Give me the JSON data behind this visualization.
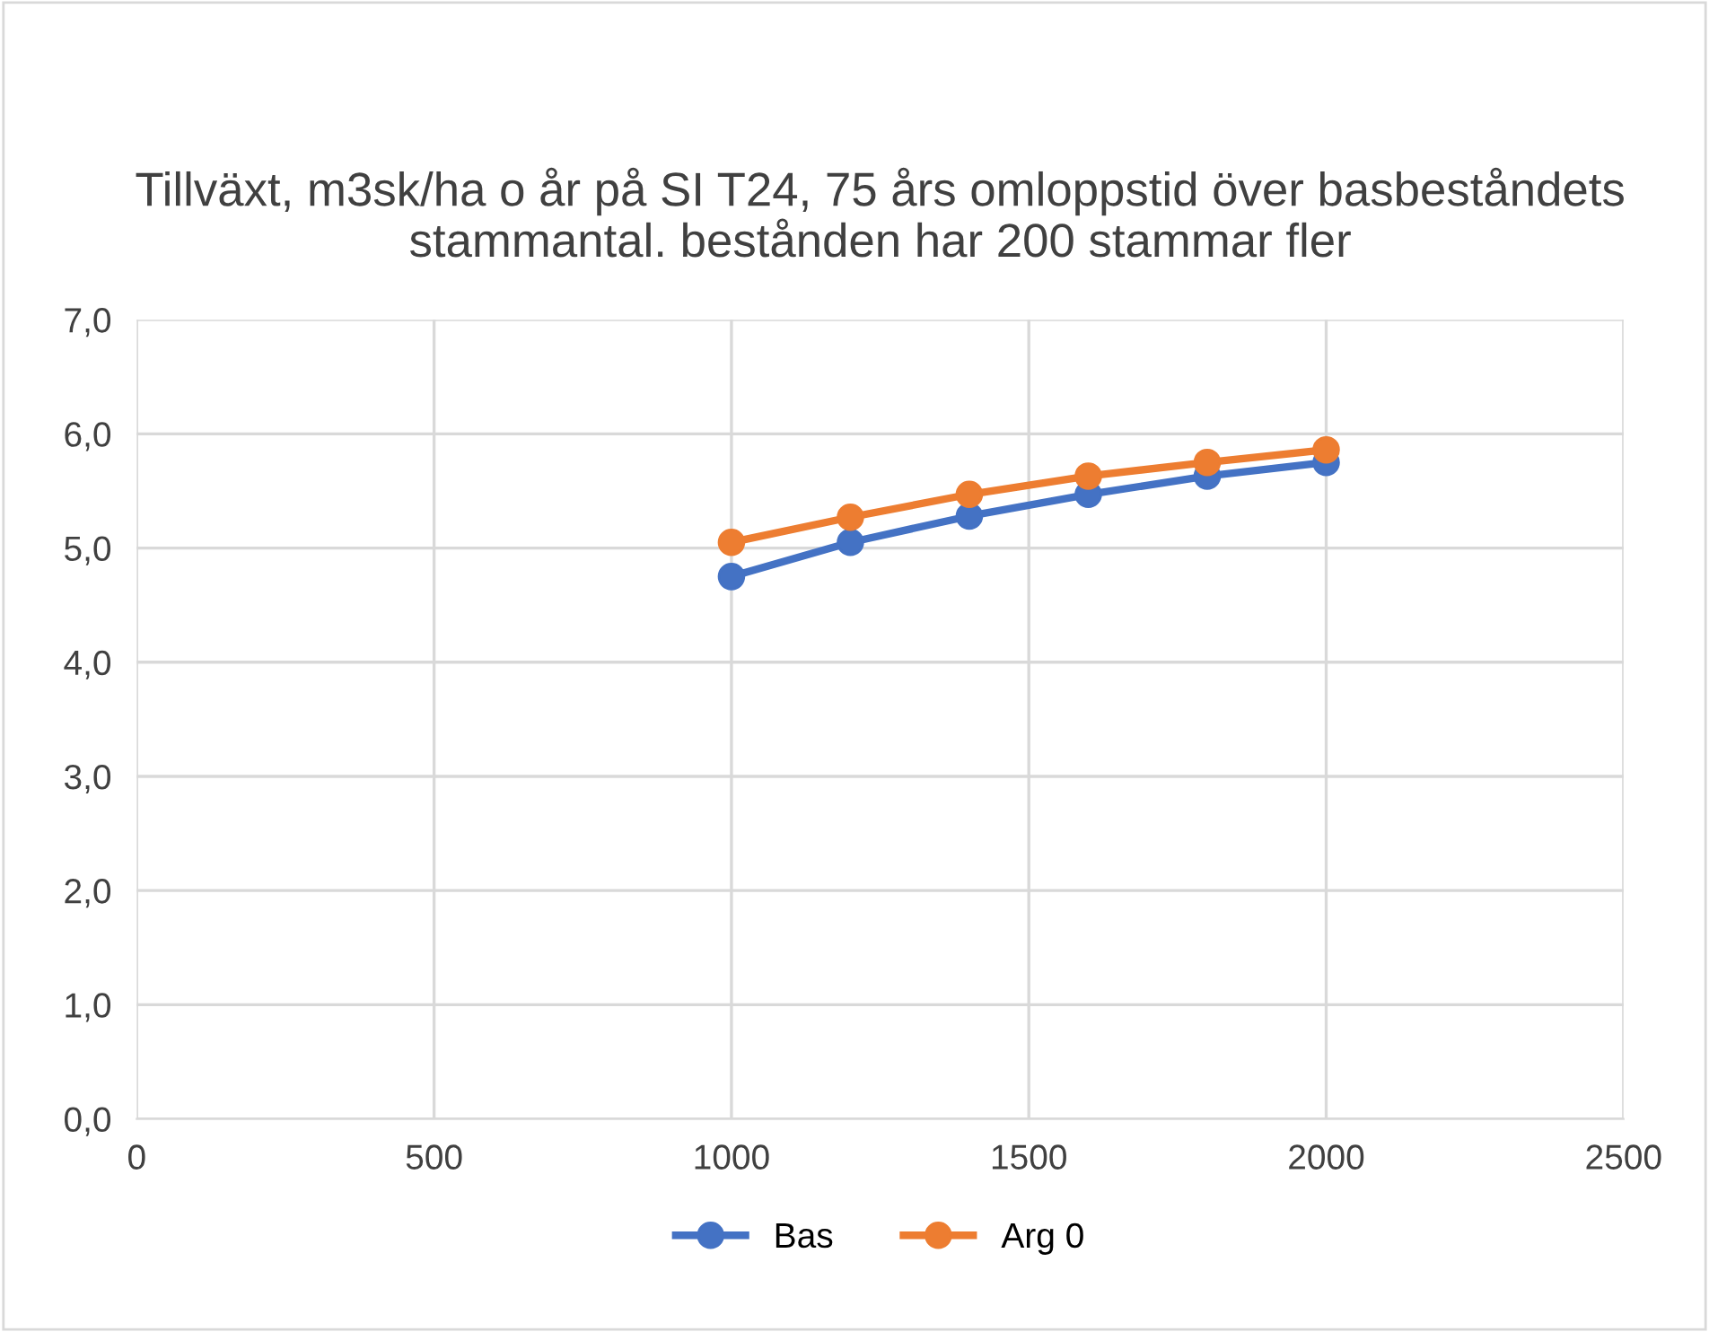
{
  "chart_data": {
    "type": "line",
    "title": "Tillväxt, m3sk/ha o år på SI T24, 75 års omloppstid över basbeståndets stammantal. bestånden har 200 stammar fler",
    "x": [
      1000,
      1200,
      1400,
      1600,
      1800,
      2000
    ],
    "series": [
      {
        "name": "Bas",
        "color": "#4472c4",
        "values": [
          4.75,
          5.05,
          5.28,
          5.47,
          5.63,
          5.75
        ]
      },
      {
        "name": "Arg 0",
        "color": "#ed7d31",
        "values": [
          5.05,
          5.27,
          5.47,
          5.63,
          5.75,
          5.86
        ]
      }
    ],
    "xlim": [
      0,
      2500
    ],
    "xticks": [
      0,
      500,
      1000,
      1500,
      2000,
      2500
    ],
    "ylim": [
      0,
      7
    ],
    "yticks": [
      {
        "value": 0,
        "label": "0,0"
      },
      {
        "value": 1,
        "label": "1,0"
      },
      {
        "value": 2,
        "label": "2,0"
      },
      {
        "value": 3,
        "label": "3,0"
      },
      {
        "value": 4,
        "label": "4,0"
      },
      {
        "value": 5,
        "label": "5,0"
      },
      {
        "value": 6,
        "label": "6,0"
      },
      {
        "value": 7,
        "label": "7,0"
      }
    ],
    "grid": true,
    "legend": "bottom",
    "marker": "circle",
    "line_style": "solid"
  }
}
